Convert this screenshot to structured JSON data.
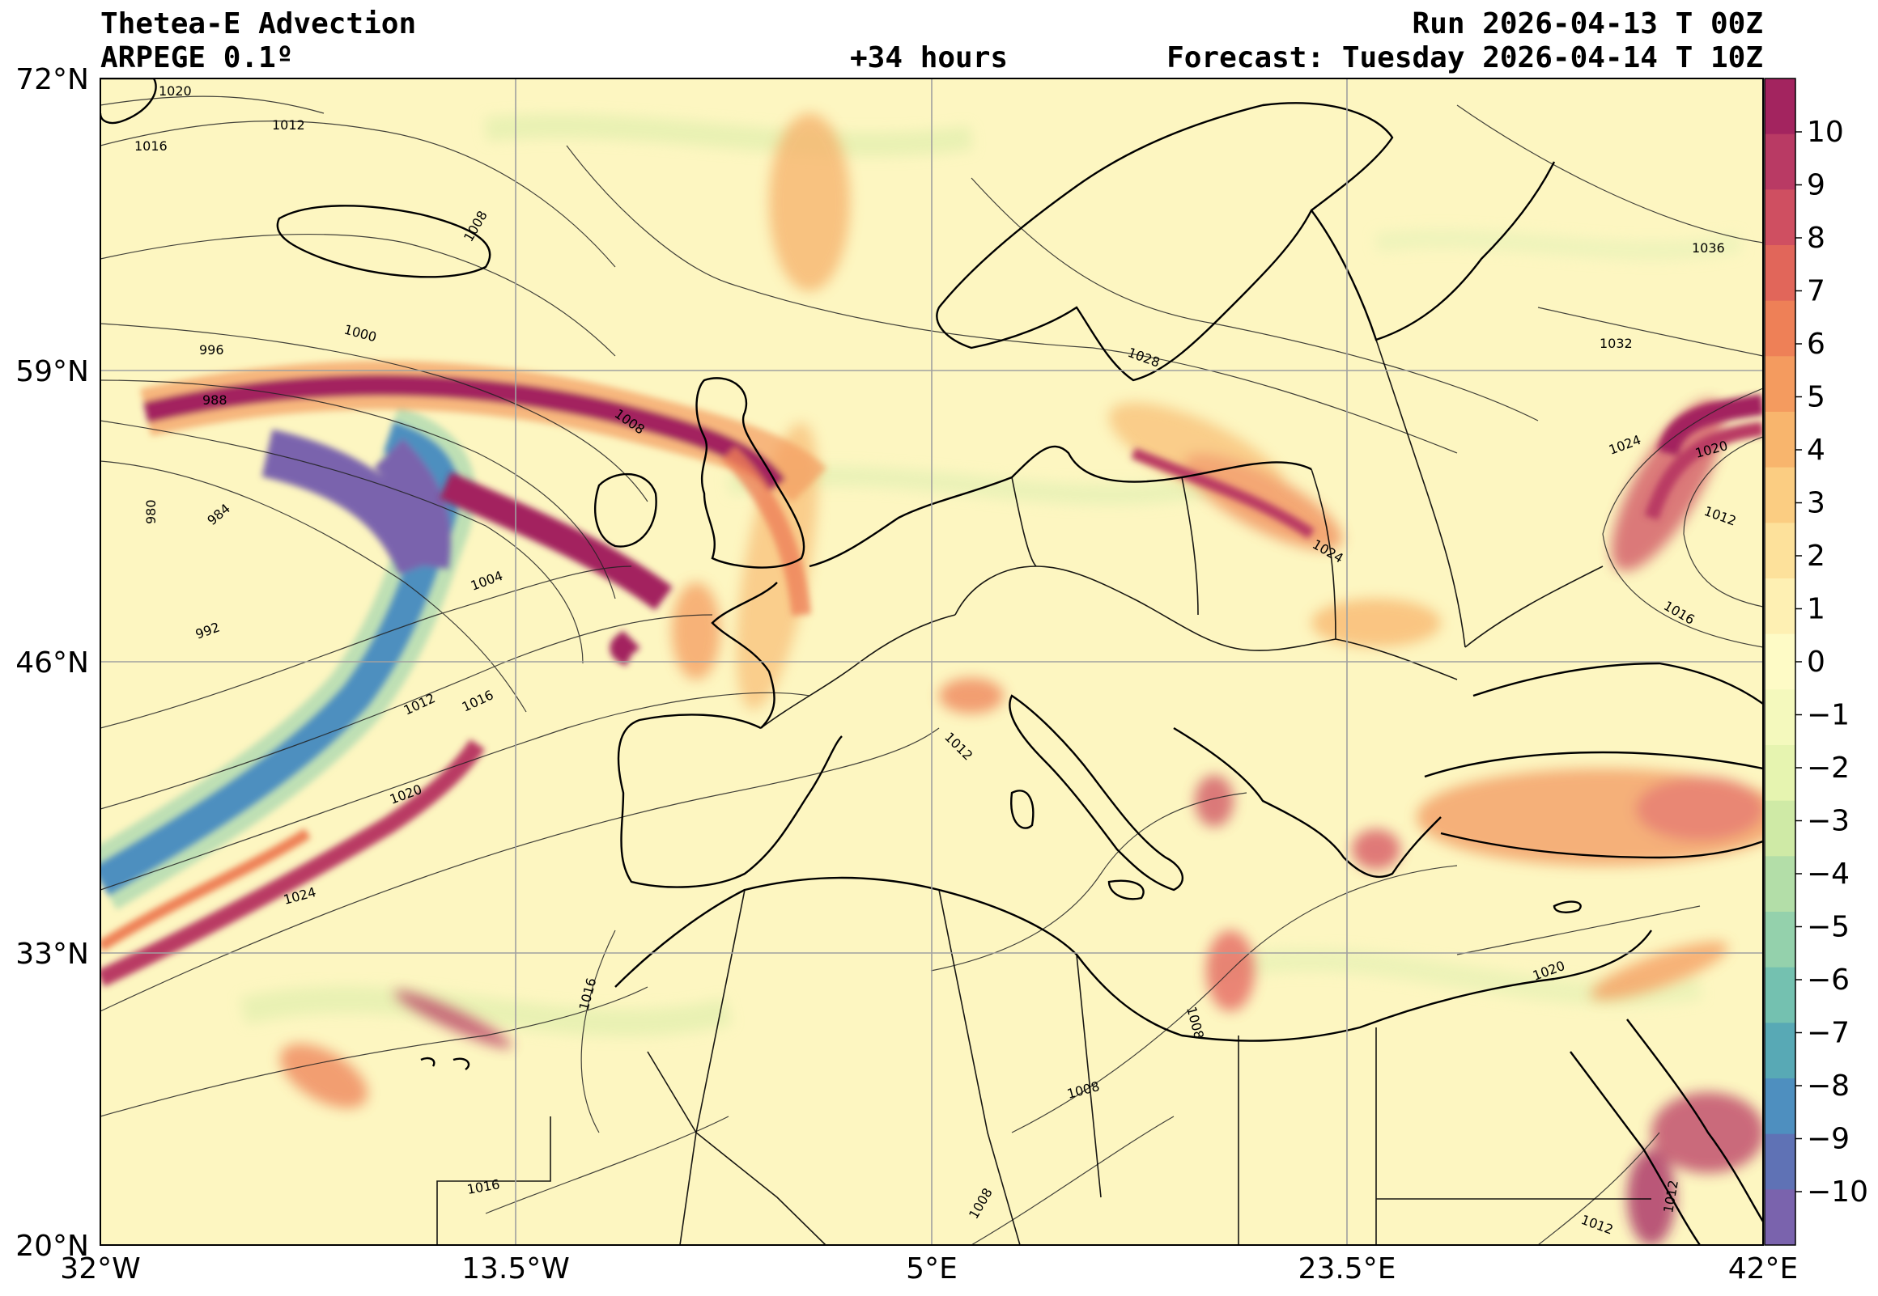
{
  "header": {
    "title": "Thetea-E Advection",
    "model": "ARPEGE 0.1º",
    "lead": "+34 hours",
    "run": "Run 2026-04-13 T 00Z",
    "forecast": "Forecast: Tuesday 2026-04-14 T 10Z"
  },
  "axes": {
    "lat_ticks": [
      "72°N",
      "59°N",
      "46°N",
      "33°N",
      "20°N"
    ],
    "lon_ticks": [
      "32°W",
      "13.5°W",
      "5°E",
      "23.5°E",
      "42°E"
    ]
  },
  "colorbar": {
    "ticks": [
      "10",
      "9",
      "8",
      "7",
      "6",
      "5",
      "4",
      "3",
      "2",
      "1",
      "0",
      "−1",
      "−2",
      "−3",
      "−4",
      "−5",
      "−6",
      "−7",
      "−8",
      "−9",
      "−10"
    ],
    "colors": [
      "#a3245f",
      "#b93a64",
      "#cf4f61",
      "#e1665a",
      "#ee8057",
      "#f49b5f",
      "#f8b56d",
      "#fbcd82",
      "#fde19b",
      "#fef0b3",
      "#fefbc6",
      "#f4f9bd",
      "#e6f4b0",
      "#cfeaa6",
      "#b3dea8",
      "#94d1ac",
      "#74c1b0",
      "#58a9b5",
      "#4e8fbf",
      "#5f72b5",
      "#7a63ad"
    ]
  },
  "isobars": {
    "labels": [
      "1020",
      "1012",
      "1016",
      "1008",
      "1000",
      "996",
      "988",
      "1008",
      "980",
      "984",
      "1004",
      "992",
      "1012",
      "1016",
      "1020",
      "1024",
      "1028",
      "1024",
      "1036",
      "1032",
      "1024",
      "1020",
      "1012",
      "1016",
      "1012",
      "1020",
      "1008",
      "1008",
      "1008",
      "1016",
      "1012",
      "1012",
      "1016"
    ]
  }
}
